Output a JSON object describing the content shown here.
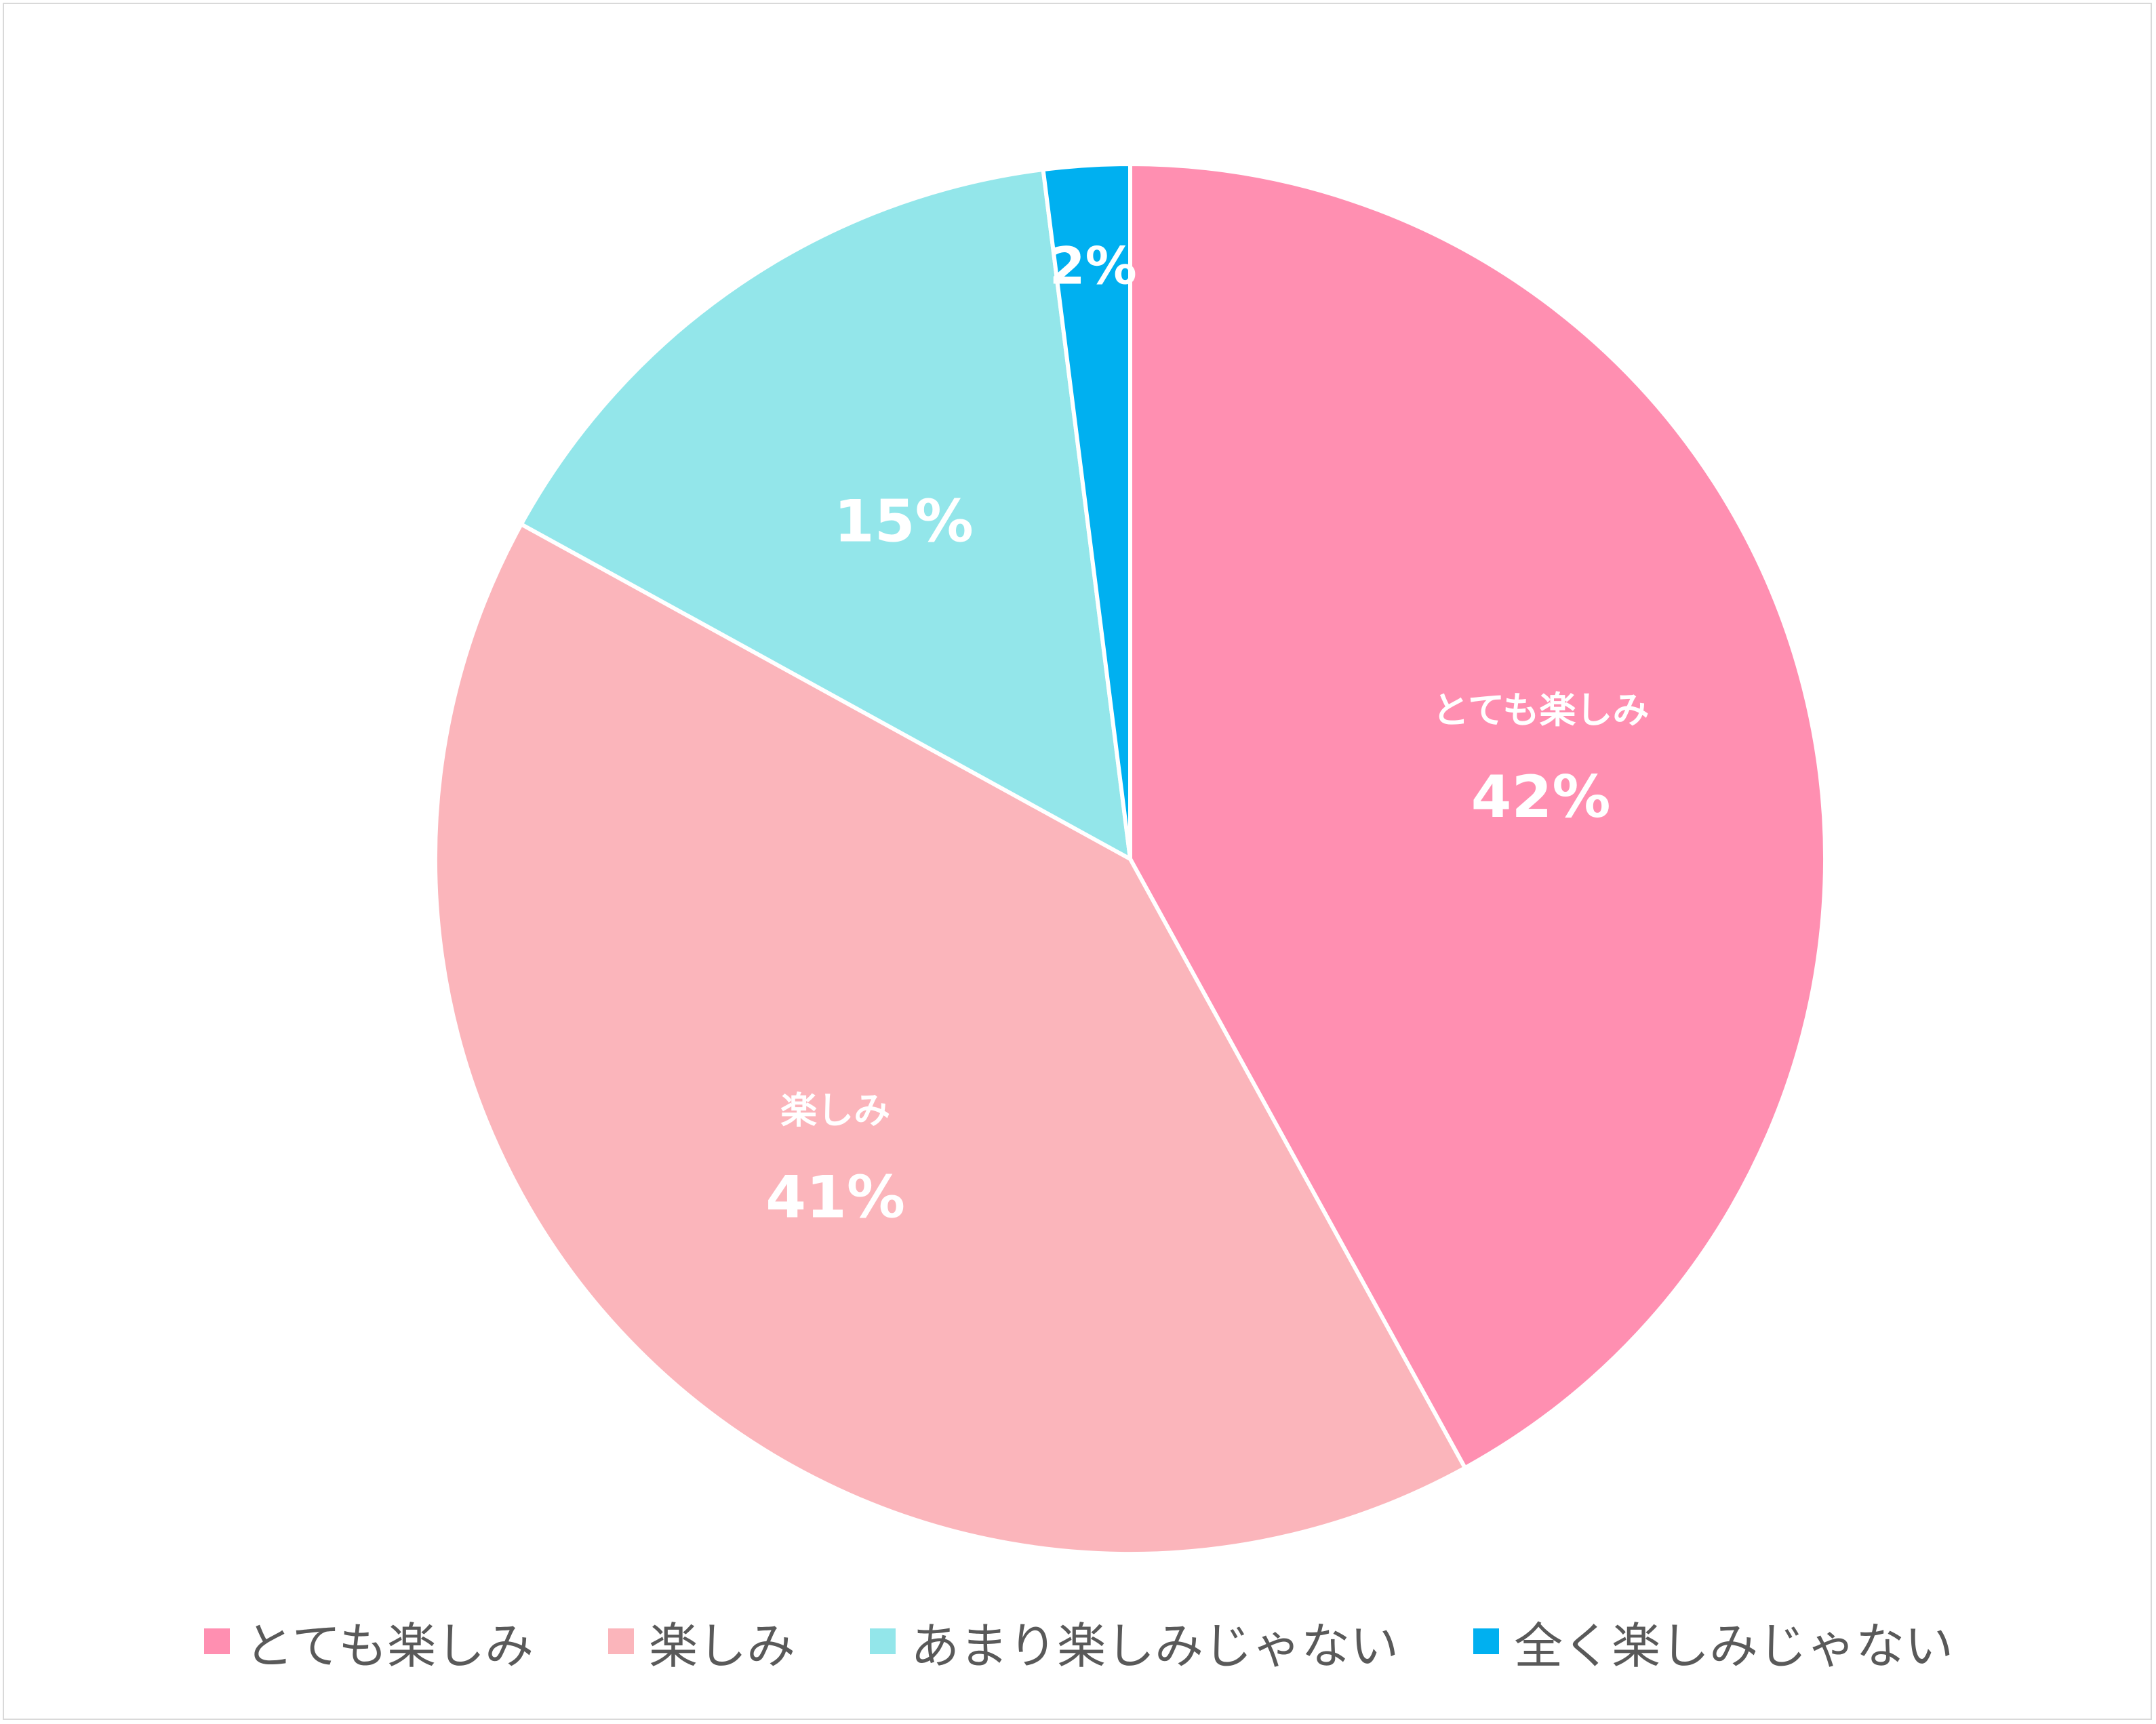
{
  "chart_data": {
    "type": "pie",
    "title": "",
    "categories": [
      "とても楽しみ",
      "楽しみ",
      "あまり楽しみじゃない",
      "全く楽しみじゃない"
    ],
    "values": [
      42,
      41,
      15,
      2
    ],
    "value_labels": [
      "42%",
      "41%",
      "15%",
      "2%"
    ],
    "slice_name_labels": [
      "とても楽しみ",
      "楽しみ",
      "",
      ""
    ],
    "colors": [
      "#ff8fb1",
      "#fbb5bb",
      "#93e6ea",
      "#00b0f0"
    ],
    "start_angle_deg": 0,
    "direction": "clockwise",
    "legend_position": "bottom"
  }
}
